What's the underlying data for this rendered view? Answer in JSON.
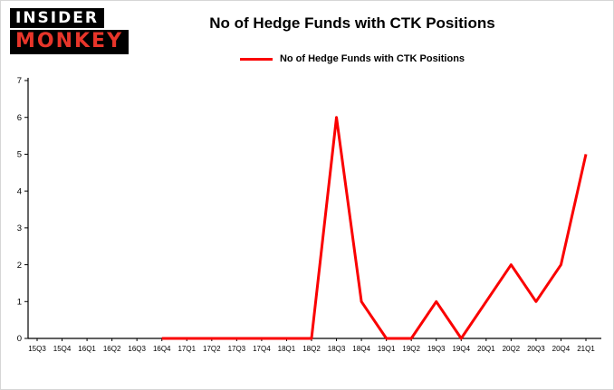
{
  "logo": {
    "line1": "INSIDER",
    "line2": "MONKEY"
  },
  "header": {
    "title": "No of Hedge Funds with CTK Positions"
  },
  "legend": {
    "label": "No of Hedge Funds with CTK Positions",
    "line_color": "#fa0000"
  },
  "chart_data": {
    "type": "line",
    "title": "No of Hedge Funds with CTK Positions",
    "categories": [
      "15Q3",
      "15Q4",
      "16Q1",
      "16Q2",
      "16Q3",
      "16Q4",
      "17Q1",
      "17Q2",
      "17Q3",
      "17Q4",
      "18Q1",
      "18Q2",
      "18Q3",
      "18Q4",
      "19Q1",
      "19Q2",
      "19Q3",
      "19Q4",
      "20Q1",
      "20Q2",
      "20Q3",
      "20Q4",
      "21Q1"
    ],
    "values": [
      null,
      null,
      null,
      null,
      null,
      0,
      0,
      0,
      0,
      0,
      0,
      0,
      6,
      1,
      0,
      0,
      1,
      0,
      1,
      2,
      1,
      2,
      5
    ],
    "xlabel": "",
    "ylabel": "",
    "ylim": [
      0,
      7
    ],
    "yticks": [
      0,
      1,
      2,
      3,
      4,
      5,
      6,
      7
    ],
    "grid": false,
    "legend_position": "top",
    "line_color": "#fa0000",
    "line_width": 3
  }
}
